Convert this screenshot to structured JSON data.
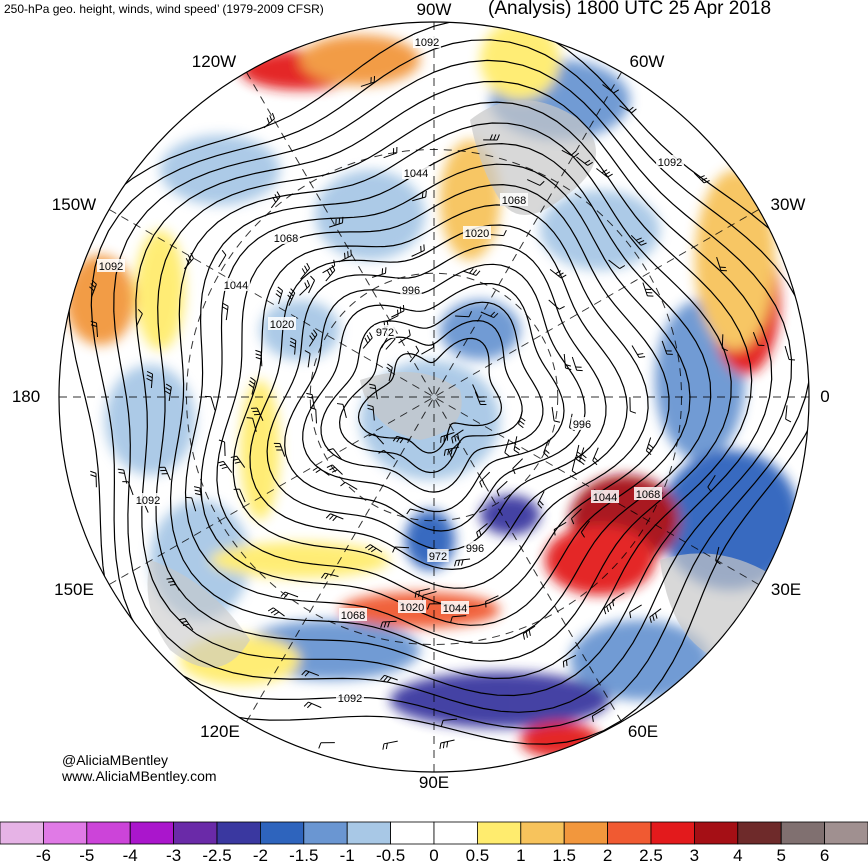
{
  "header": {
    "left_title": "250-hPa geo. height, winds, wind speed’ (1979-2009 CFSR)",
    "right_title": "(Analysis) 1800 UTC 25 Apr 2018"
  },
  "map": {
    "projection": "north-polar-stereographic",
    "longitude_labels": [
      "90W",
      "60W",
      "30W",
      "0",
      "30E",
      "60E",
      "90E",
      "120E",
      "150E",
      "180",
      "150W",
      "120W"
    ],
    "height_contour_labels": [
      "1092",
      "1092",
      "1092",
      "1092",
      "1092",
      "1068",
      "1068",
      "1068",
      "1068",
      "1044",
      "1044",
      "1044",
      "1044",
      "1020",
      "1020",
      "1020",
      "996",
      "996",
      "996",
      "972",
      "972"
    ],
    "colors": {
      "land": "#c8c8c8",
      "coastline": "#555555",
      "contour": "#000000",
      "grid": "#000000"
    }
  },
  "credits": {
    "handle": "@AliciaMBentley",
    "website": "www.AliciaMBentley.com"
  },
  "colorbar": {
    "bins": [
      {
        "label": "-6",
        "color": "#e6b3e6"
      },
      {
        "label": "-5",
        "color": "#e07ae6"
      },
      {
        "label": "-4",
        "color": "#cc44d9"
      },
      {
        "label": "-3",
        "color": "#aa16cc"
      },
      {
        "label": "-2.5",
        "color": "#6a2aa8"
      },
      {
        "label": "-2",
        "color": "#3a38a0"
      },
      {
        "label": "-1.5",
        "color": "#2e64bd"
      },
      {
        "label": "-1",
        "color": "#6a96d2"
      },
      {
        "label": "-0.5",
        "color": "#a8c8e6"
      },
      {
        "label": "0",
        "color": "#ffffff"
      },
      {
        "label": "0.5",
        "color": "#ffffff"
      },
      {
        "label": "1",
        "color": "#ffec6e"
      },
      {
        "label": "1.5",
        "color": "#f7c35c"
      },
      {
        "label": "2",
        "color": "#f2973d"
      },
      {
        "label": "2.5",
        "color": "#f05a32"
      },
      {
        "label": "3",
        "color": "#e31a1c"
      },
      {
        "label": "4",
        "color": "#a50f15"
      },
      {
        "label": "5",
        "color": "#6e2a2a"
      },
      {
        "label": "6",
        "color": "#807070"
      },
      {
        "label": "",
        "color": "#a09090"
      }
    ]
  }
}
